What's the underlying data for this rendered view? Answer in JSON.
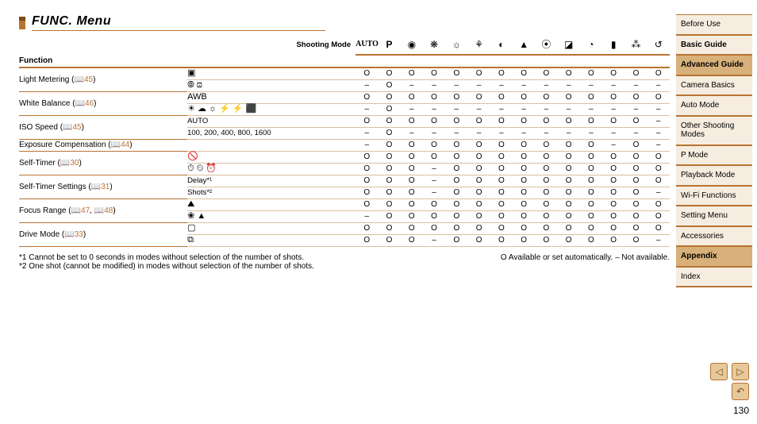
{
  "title": "FUNC. Menu",
  "header_label_shooting_mode": "Shooting Mode",
  "header_label_function": "Function",
  "mode_icons": [
    "AUTO",
    "P",
    "◉",
    "❋",
    "☼",
    "⚘",
    "◐",
    "▲",
    "⦿",
    "◪",
    "◔",
    "▮",
    "⁂",
    "↺"
  ],
  "sections": [
    {
      "name": "Light Metering",
      "page_refs": [
        "45"
      ],
      "rows": [
        {
          "option_icon": "▣",
          "vals": [
            "O",
            "O",
            "O",
            "O",
            "O",
            "O",
            "O",
            "O",
            "O",
            "O",
            "O",
            "O",
            "O",
            "O"
          ]
        },
        {
          "option_icon": "⦾ ⊡",
          "vals": [
            "–",
            "O",
            "–",
            "–",
            "–",
            "–",
            "–",
            "–",
            "–",
            "–",
            "–",
            "–",
            "–",
            "–"
          ]
        }
      ]
    },
    {
      "name": "White Balance",
      "page_refs": [
        "46"
      ],
      "rows": [
        {
          "option_icon": "AWB",
          "vals": [
            "O",
            "O",
            "O",
            "O",
            "O",
            "O",
            "O",
            "O",
            "O",
            "O",
            "O",
            "O",
            "O",
            "O"
          ]
        },
        {
          "option_icon": "☀ ☁ ☼ ⚡ ⚡ ⬛",
          "vals": [
            "–",
            "O",
            "–",
            "–",
            "–",
            "–",
            "–",
            "–",
            "–",
            "–",
            "–",
            "–",
            "–",
            "–"
          ]
        }
      ]
    },
    {
      "name": "ISO Speed",
      "page_refs": [
        "45"
      ],
      "rows": [
        {
          "option_text": "AUTO",
          "vals": [
            "O",
            "O",
            "O",
            "O",
            "O",
            "O",
            "O",
            "O",
            "O",
            "O",
            "O",
            "O",
            "O",
            "–"
          ]
        },
        {
          "option_text": "100, 200, 400, 800, 1600",
          "vals": [
            "–",
            "O",
            "–",
            "–",
            "–",
            "–",
            "–",
            "–",
            "–",
            "–",
            "–",
            "–",
            "–",
            "–"
          ]
        }
      ]
    },
    {
      "name": "Exposure Compensation",
      "page_refs": [
        "44"
      ],
      "rows": [
        {
          "option_text": "",
          "vals": [
            "–",
            "O",
            "O",
            "O",
            "O",
            "O",
            "O",
            "O",
            "O",
            "O",
            "O",
            "–",
            "O",
            "–"
          ]
        }
      ]
    },
    {
      "name": "Self-Timer",
      "page_refs": [
        "30"
      ],
      "rows": [
        {
          "option_icon": "🚫",
          "vals": [
            "O",
            "O",
            "O",
            "O",
            "O",
            "O",
            "O",
            "O",
            "O",
            "O",
            "O",
            "O",
            "O",
            "O"
          ]
        },
        {
          "option_icon": "⏱ ⏲ ⏰",
          "vals": [
            "O",
            "O",
            "O",
            "–",
            "O",
            "O",
            "O",
            "O",
            "O",
            "O",
            "O",
            "O",
            "O",
            "O"
          ]
        }
      ]
    },
    {
      "name": "Self-Timer Settings",
      "page_refs": [
        "31"
      ],
      "rows": [
        {
          "option_text": "Delay*¹",
          "vals": [
            "O",
            "O",
            "O",
            "–",
            "O",
            "O",
            "O",
            "O",
            "O",
            "O",
            "O",
            "O",
            "O",
            "O"
          ]
        },
        {
          "option_text": "Shots*²",
          "vals": [
            "O",
            "O",
            "O",
            "–",
            "O",
            "O",
            "O",
            "O",
            "O",
            "O",
            "O",
            "O",
            "O",
            "–"
          ]
        }
      ]
    },
    {
      "name": "Focus Range",
      "page_refs": [
        "47",
        "48"
      ],
      "rows": [
        {
          "option_icon": "⛰",
          "vals": [
            "O",
            "O",
            "O",
            "O",
            "O",
            "O",
            "O",
            "O",
            "O",
            "O",
            "O",
            "O",
            "O",
            "O"
          ]
        },
        {
          "option_icon": "❀ ▲",
          "vals": [
            "–",
            "O",
            "O",
            "O",
            "O",
            "O",
            "O",
            "O",
            "O",
            "O",
            "O",
            "O",
            "O",
            "O"
          ]
        }
      ]
    },
    {
      "name": "Drive Mode",
      "page_refs": [
        "33"
      ],
      "rows": [
        {
          "option_icon": "▢",
          "vals": [
            "O",
            "O",
            "O",
            "O",
            "O",
            "O",
            "O",
            "O",
            "O",
            "O",
            "O",
            "O",
            "O",
            "O"
          ]
        },
        {
          "option_icon": "⧉",
          "vals": [
            "O",
            "O",
            "O",
            "–",
            "O",
            "O",
            "O",
            "O",
            "O",
            "O",
            "O",
            "O",
            "O",
            "–"
          ]
        }
      ]
    }
  ],
  "footnotes": {
    "f1": "*1 Cannot be set to 0 seconds in modes without selection of the number of shots.",
    "f2": "*2 One shot (cannot be modified) in modes without selection of the number of shots.",
    "legend": "O Available or set automatically.    – Not available."
  },
  "sidebar": [
    {
      "label": "Before Use",
      "active": false,
      "bold": false
    },
    {
      "label": "Basic Guide",
      "active": false,
      "bold": true
    },
    {
      "label": "Advanced Guide",
      "active": true,
      "bold": true
    },
    {
      "label": "Camera Basics",
      "active": false,
      "bold": false
    },
    {
      "label": "Auto Mode",
      "active": false,
      "bold": false
    },
    {
      "label": "Other Shooting Modes",
      "active": false,
      "bold": false
    },
    {
      "label": "P Mode",
      "active": false,
      "bold": false
    },
    {
      "label": "Playback Mode",
      "active": false,
      "bold": false
    },
    {
      "label": "Wi-Fi Functions",
      "active": false,
      "bold": false
    },
    {
      "label": "Setting Menu",
      "active": false,
      "bold": false
    },
    {
      "label": "Accessories",
      "active": false,
      "bold": false
    },
    {
      "label": "Appendix",
      "active": true,
      "bold": false
    },
    {
      "label": "Index",
      "active": false,
      "bold": false
    }
  ],
  "page_number": "130",
  "pager": {
    "prev": "◁",
    "next": "▷",
    "return": "↶"
  },
  "colors": {
    "accent": "#b87333",
    "accent_dark": "#7a4a1a",
    "row_sep": "#d9c0a0",
    "nav_bg": "#f6ede0",
    "nav_active": "#d7b07a"
  }
}
